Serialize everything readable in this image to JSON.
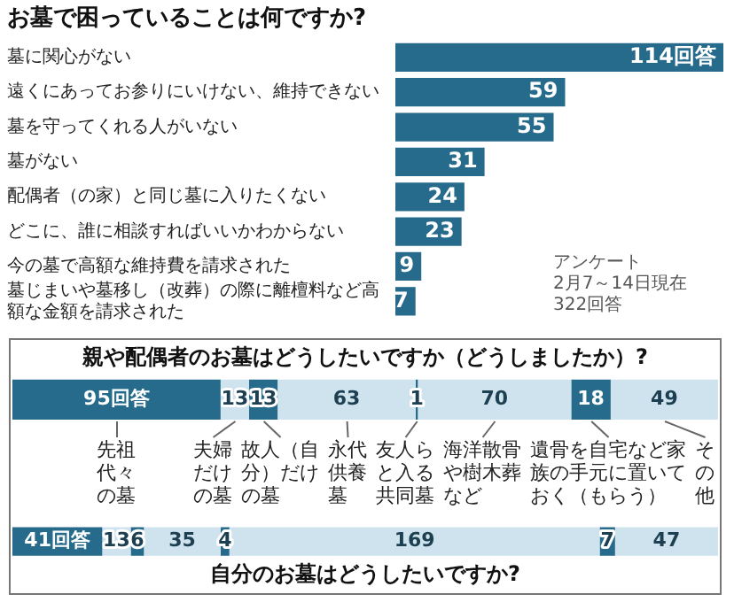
{
  "chart_data": [
    {
      "type": "bar",
      "orientation": "horizontal",
      "title": "お墓で困っていることは何ですか?",
      "categories": [
        "墓に関心がない",
        "遠くにあってお参りにいけない、維持できない",
        "墓を守ってくれる人がいない",
        "墓がない",
        "配偶者（の家）と同じ墓に入りたくない",
        "どこに、誰に相談すればいいかわからない",
        "今の墓で高額な維持費を請求された",
        "墓じまいや墓移し（改葬）の際に離檀料など高額な金額を請求された"
      ],
      "values": [
        114,
        59,
        55,
        31,
        24,
        23,
        9,
        7
      ],
      "color": "#266b8c",
      "value_labels": [
        "114回答",
        "59",
        "55",
        "31",
        "24",
        "23",
        "9",
        "7"
      ],
      "xlim": [
        0,
        114
      ],
      "tick_labels": "y",
      "legend": false,
      "annotations": [
        "アンケート",
        "2月7～14日現在",
        "322回答"
      ]
    },
    {
      "type": "bar",
      "orientation": "horizontal",
      "stacked": true,
      "title": "親や配偶者のお墓はどうしたいですか（どうしましたか）?",
      "categories": [
        null
      ],
      "xlim": [
        0,
        322
      ],
      "tick_labels": false,
      "legend": false,
      "series": [
        {
          "name": "先祖代々の墓",
          "color": "#266b8c",
          "values": [
            95
          ],
          "value_labels": [
            "95回答"
          ]
        },
        {
          "name": "夫婦だけの墓",
          "color": "#cfe3ee",
          "values": [
            13
          ],
          "value_labels": [
            "13"
          ]
        },
        {
          "name": "故人（自分）だけの墓",
          "color": "#266b8c",
          "values": [
            13
          ],
          "value_labels": [
            "13"
          ]
        },
        {
          "name": "永代供養墓",
          "color": "#cfe3ee",
          "values": [
            63
          ],
          "value_labels": [
            "63"
          ]
        },
        {
          "name": "友人らと入る共同墓",
          "color": "#266b8c",
          "values": [
            1
          ],
          "value_labels": [
            "1"
          ]
        },
        {
          "name": "海洋散骨や樹木葬など",
          "color": "#cfe3ee",
          "values": [
            70
          ],
          "value_labels": [
            "70"
          ]
        },
        {
          "name": "遺骨を自宅など家族の手元に置いておく（もらう）",
          "color": "#266b8c",
          "values": [
            18
          ],
          "value_labels": [
            "18"
          ]
        },
        {
          "name": "その他",
          "color": "#cfe3ee",
          "values": [
            49
          ],
          "value_labels": [
            "49"
          ]
        }
      ]
    },
    {
      "type": "bar",
      "orientation": "horizontal",
      "stacked": true,
      "title": "自分のお墓はどうしたいですか?",
      "categories": [
        null
      ],
      "xlim": [
        0,
        322
      ],
      "tick_labels": false,
      "legend": false,
      "series": [
        {
          "color": "#266b8c",
          "values": [
            41
          ],
          "value_labels": [
            "41回答"
          ]
        },
        {
          "color": "#cfe3ee",
          "values": [
            13
          ],
          "value_labels": [
            "13"
          ]
        },
        {
          "color": "#266b8c",
          "values": [
            6
          ],
          "value_labels": [
            "6"
          ]
        },
        {
          "color": "#cfe3ee",
          "values": [
            35
          ],
          "value_labels": [
            "35"
          ]
        },
        {
          "color": "#266b8c",
          "values": [
            4
          ],
          "value_labels": [
            "4"
          ]
        },
        {
          "color": "#cfe3ee",
          "values": [
            169
          ],
          "value_labels": [
            "169"
          ]
        },
        {
          "color": "#266b8c",
          "values": [
            7
          ],
          "value_labels": [
            "7"
          ]
        },
        {
          "color": "#cfe3ee",
          "values": [
            47
          ],
          "value_labels": [
            "47"
          ]
        }
      ]
    }
  ]
}
